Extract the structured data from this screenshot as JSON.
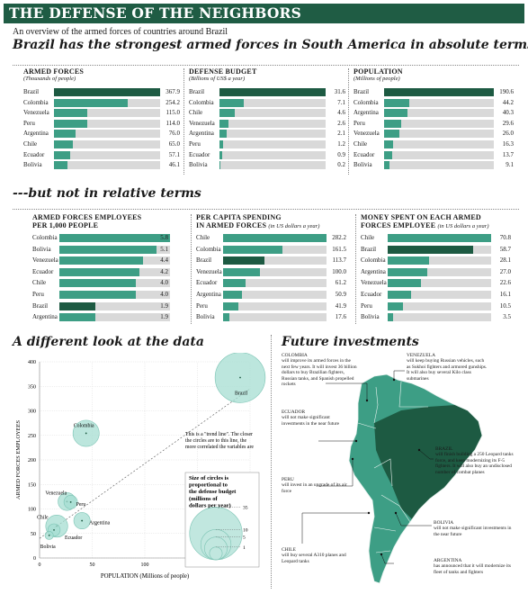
{
  "header": {
    "title": "THE DEFENSE OF THE NEIGHBORS",
    "subtitle": "An overview of the armed forces of countries around Brazil",
    "headline1": "Brazil has the strongest armed forces in South America in absolute terms---",
    "headline2": "---but not in relative terms",
    "headline3": "A different look at the data",
    "headline4": "Future investments"
  },
  "colors": {
    "banner": "#1f5c44",
    "bar": "#3d9e85",
    "bar_highlight": "#1d5a42",
    "track": "#d9d9d9",
    "bubble": "#a6ddd2"
  },
  "chart_data": [
    {
      "type": "bar",
      "title": "ARMED FORCES",
      "subtitle": "(Thousands of people)",
      "categories": [
        "Brazil",
        "Colombia",
        "Venezuela",
        "Peru",
        "Argentina",
        "Chile",
        "Ecuador",
        "Bolivia"
      ],
      "values": [
        367.9,
        254.2,
        115.0,
        114.0,
        76.0,
        65.0,
        57.1,
        46.1
      ],
      "labels": [
        "367.9",
        "254.2",
        "115.0",
        "114.0",
        "76.0",
        "65.0",
        "57.1",
        "46.1"
      ],
      "max": 367.9,
      "highlight": "Brazil"
    },
    {
      "type": "bar",
      "title": "DEFENSE BUDGET",
      "subtitle": "(Billions of US$ a year)",
      "categories": [
        "Brazil",
        "Colombia",
        "Chile",
        "Venezuela",
        "Argentina",
        "Peru",
        "Ecuador",
        "Bolivia"
      ],
      "values": [
        31.6,
        7.1,
        4.6,
        2.6,
        2.1,
        1.2,
        0.9,
        0.2
      ],
      "labels": [
        "31.6",
        "7.1",
        "4.6",
        "2.6",
        "2.1",
        "1.2",
        "0.9",
        "0.2"
      ],
      "max": 31.6,
      "highlight": "Brazil"
    },
    {
      "type": "bar",
      "title": "POPULATION",
      "subtitle": "(Millions of people)",
      "categories": [
        "Brazil",
        "Colombia",
        "Argentina",
        "Peru",
        "Venezuela",
        "Chile",
        "Ecuador",
        "Bolivia"
      ],
      "values": [
        190.6,
        44.2,
        40.3,
        29.6,
        26.0,
        16.3,
        13.7,
        9.1
      ],
      "labels": [
        "190.6",
        "44.2",
        "40.3",
        "29.6",
        "26.0",
        "16.3",
        "13.7",
        "9.1"
      ],
      "max": 190.6,
      "highlight": "Brazil"
    },
    {
      "type": "bar",
      "title": "ARMED FORCES EMPLOYEES",
      "title_line2": "PER 1,000 PEOPLE",
      "subtitle": "",
      "categories": [
        "Colombia",
        "Bolivia",
        "Venezuela",
        "Ecuador",
        "Chile",
        "Peru",
        "Brazil",
        "Argentina"
      ],
      "values": [
        5.8,
        5.1,
        4.4,
        4.2,
        4.0,
        4.0,
        1.9,
        1.9
      ],
      "labels": [
        "5.8",
        "5.1",
        "4.4",
        "4.2",
        "4.0",
        "4.0",
        "1.9",
        "1.9"
      ],
      "max": 5.8,
      "highlight": "Brazil"
    },
    {
      "type": "bar",
      "title": "PER CAPITA SPENDING",
      "title_line2": "IN ARMED FORCES",
      "subtitle": "(in US dollars a year)",
      "categories": [
        "Chile",
        "Colombia",
        "Brazil",
        "Venezuela",
        "Ecuador",
        "Argentina",
        "Peru",
        "Bolivia"
      ],
      "values": [
        282.2,
        161.5,
        113.7,
        100.0,
        61.2,
        50.9,
        41.9,
        17.6
      ],
      "labels": [
        "282.2",
        "161.5",
        "113.7",
        "100.0",
        "61.2",
        "50.9",
        "41.9",
        "17.6"
      ],
      "max": 282.2,
      "highlight": "Brazil"
    },
    {
      "type": "bar",
      "title": "MONEY SPENT ON EACH ARMED",
      "title_line2": "FORCES EMPLOYEE",
      "subtitle": "(in US dollars a year)",
      "categories": [
        "Chile",
        "Brazil",
        "Colombia",
        "Argentina",
        "Venezuela",
        "Ecuador",
        "Peru",
        "Bolivia"
      ],
      "values": [
        70.8,
        58.7,
        28.1,
        27.0,
        22.6,
        16.1,
        10.5,
        3.5
      ],
      "labels": [
        "70.8",
        "58.7",
        "28.1",
        "27.0",
        "22.6",
        "16.1",
        "10.5",
        "3.5"
      ],
      "max": 70.8,
      "highlight": "Brazil"
    },
    {
      "type": "scatter",
      "title": "A different look at the data",
      "xlabel": "POPULATION (Millions of people)",
      "ylabel": "ARMED FORCES EMPLOYEES",
      "xlim": [
        0,
        200
      ],
      "ylim": [
        0,
        400
      ],
      "xticks": [
        0,
        50,
        100,
        150,
        200
      ],
      "yticks": [
        0,
        50,
        100,
        150,
        200,
        250,
        300,
        350,
        400
      ],
      "points": [
        {
          "name": "Brazil",
          "x": 190.6,
          "y": 367.9,
          "budget": 31.6
        },
        {
          "name": "Colombia",
          "x": 44.2,
          "y": 254.2,
          "budget": 7.1
        },
        {
          "name": "Venezuela",
          "x": 26.0,
          "y": 115.0,
          "budget": 2.6
        },
        {
          "name": "Peru",
          "x": 29.6,
          "y": 114.0,
          "budget": 1.2
        },
        {
          "name": "Argentina",
          "x": 40.3,
          "y": 76.0,
          "budget": 2.1
        },
        {
          "name": "Chile",
          "x": 16.3,
          "y": 65.0,
          "budget": 4.6
        },
        {
          "name": "Ecuador",
          "x": 13.7,
          "y": 57.1,
          "budget": 0.9
        },
        {
          "name": "Bolivia",
          "x": 9.1,
          "y": 46.1,
          "budget": 0.2
        }
      ],
      "trend_note": "This is a \"trend line\". The closer the circles are to this line, the more correlated the variables are",
      "size_legend": {
        "title": "Size of circles is proportional to the defense budget (millions of dollars per year)",
        "values": [
          35,
          10,
          5,
          1
        ],
        "labels": [
          "35",
          "10",
          "5",
          "1"
        ]
      }
    }
  ],
  "investments": {
    "colombia": "COLOMBIA will improve its armed forces in the next few years. It will invest 36 billion dollars to buy Brazilian fighters, Russian tanks, and Spanish propelled rockets",
    "venezuela": "VENEZUELA will keep buying Russian vehicles, such as Sukhoi fighters and armored gunships. It will also buy several Kilo class submarines",
    "ecuador": "ECUADOR will not make significant investments in the near future",
    "brazil": "BRAZIL will finish building a 250 Leopard tanks force, and keep modernizing its F-5 fighters. It will also buy an undisclosed number of combat planes",
    "peru": "PERU will invest in an upgrade of its air force",
    "bolivia": "BOLIVIA will not make significant investments in the near future",
    "chile": "CHILE will buy several A310 planes and Leopard tanks",
    "argentina": "ARGENTINA has announced that it will modernize its fleet of tanks and fighters"
  }
}
